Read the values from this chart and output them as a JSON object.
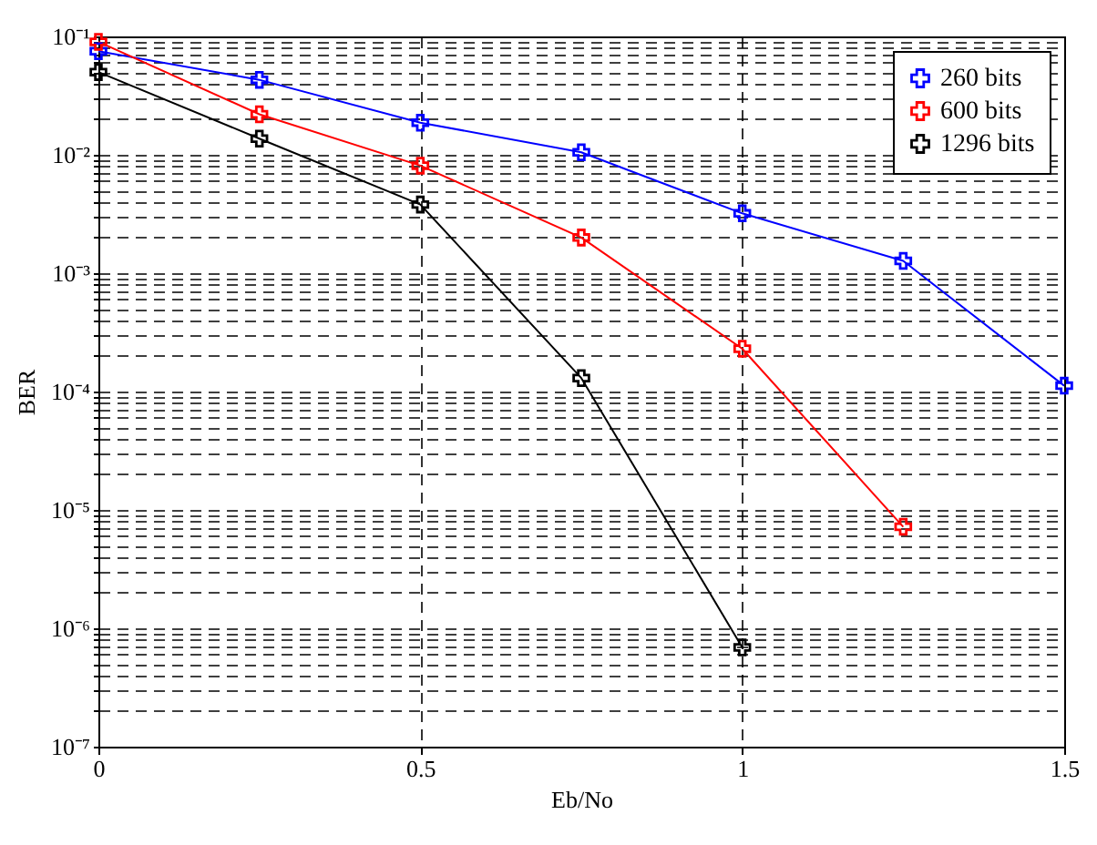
{
  "chart_data": {
    "type": "line",
    "xlabel": "Eb/No",
    "ylabel": "BER",
    "log": "y",
    "grid": true,
    "legend": "top right",
    "marker": "cross",
    "line_style": "solid",
    "x": [
      0,
      0.25,
      0.5,
      0.75,
      1,
      1.25,
      1.5
    ],
    "xlim": [
      0,
      1.5
    ],
    "xticks": [
      0,
      0.5,
      1,
      1.5
    ],
    "ylim": [
      1e-07,
      0.1
    ],
    "yticks": [
      {
        "value": 1e-07,
        "label": "10⁻⁷"
      },
      {
        "value": 1e-06,
        "label": "10⁻⁶"
      },
      {
        "value": 1e-05,
        "label": "10⁻⁵"
      },
      {
        "value": 0.0001,
        "label": "10⁻⁴"
      },
      {
        "value": 0.001,
        "label": "10⁻³"
      },
      {
        "value": 0.01,
        "label": "10⁻²"
      },
      {
        "value": 0.1,
        "label": "10⁻¹"
      }
    ],
    "series": [
      {
        "name": "260 bits",
        "color": "#0000ff",
        "values": [
          0.075,
          0.043,
          0.0187,
          0.0105,
          0.0032,
          0.00127,
          0.000112
        ]
      },
      {
        "name": "600 bits",
        "color": "#ff0000",
        "values": [
          0.09,
          0.022,
          0.0081,
          0.002,
          0.00023,
          7.2e-06,
          null
        ]
      },
      {
        "name": "1296 bits",
        "color": "#000000",
        "values": [
          0.05,
          0.0137,
          0.0038,
          0.00013,
          6.9e-07,
          null,
          null
        ]
      }
    ]
  }
}
